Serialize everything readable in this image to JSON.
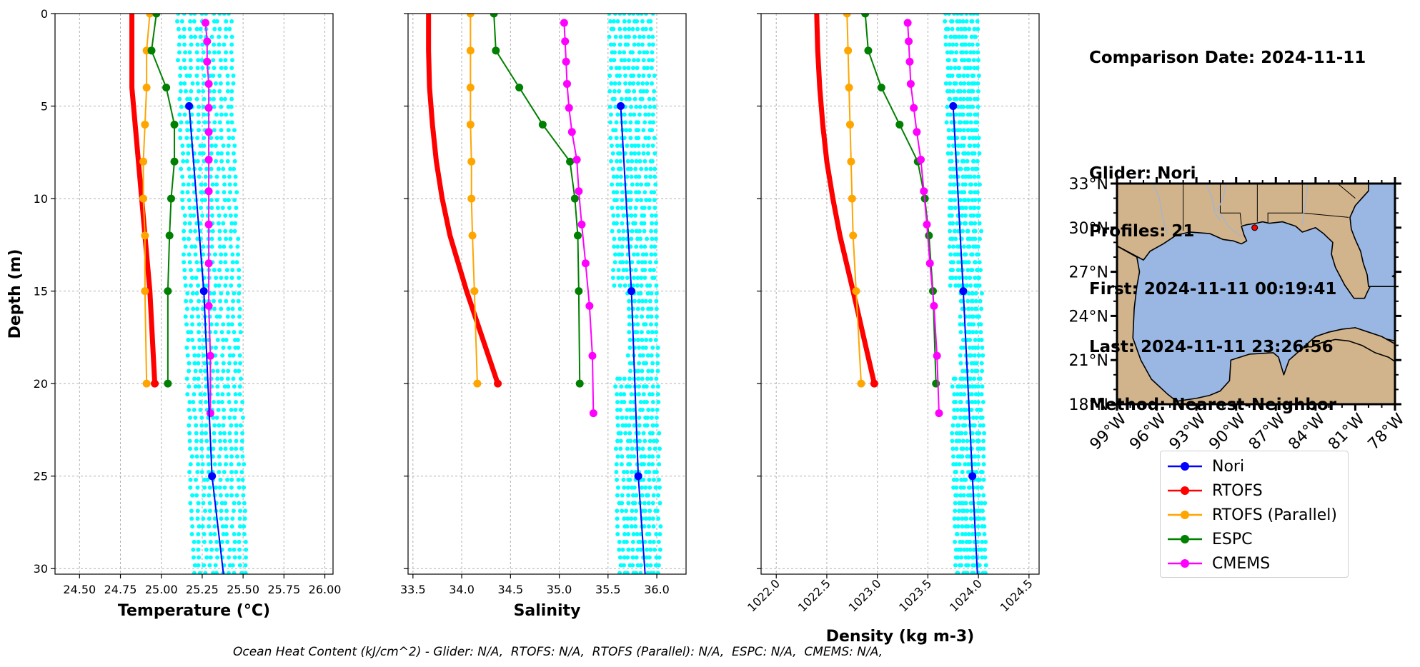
{
  "info": {
    "comparison_date": "Comparison Date: 2024-11-11",
    "glider": "Glider: Nori",
    "profiles": "Profiles: 21",
    "first": "First: 2024-11-11 00:19:41",
    "last": "Last: 2024-11-11 23:26:56",
    "method": "Method: Nearest-Neighbor"
  },
  "footer": "Ocean Heat Content (kJ/cm^2) - Glider: N/A,  RTOFS: N/A,  RTOFS (Parallel): N/A,  ESPC: N/A,  CMEMS: N/A,",
  "colors": {
    "Nori": "#0000ff",
    "RTOFS": "#ff0000",
    "RTOFS (Parallel)": "#ffa500",
    "ESPC": "#008000",
    "CMEMS": "#ff00ff",
    "glider_profiles": "#00ffff",
    "land": "#d2b48c",
    "water": "#99b7e2"
  },
  "legend": [
    "Nori",
    "RTOFS",
    "RTOFS (Parallel)",
    "ESPC",
    "CMEMS"
  ],
  "chart_data": [
    {
      "type": "line",
      "xlabel": "Temperature (°C)",
      "ylabel": "Depth (m)",
      "xlim": [
        24.35,
        26.05
      ],
      "ylim": [
        30.3,
        0
      ],
      "xticks": [
        "24.50",
        "24.75",
        "25.00",
        "25.25",
        "25.50",
        "25.75",
        "26.00"
      ],
      "xtick_values": [
        24.5,
        24.75,
        25.0,
        25.25,
        25.5,
        25.75,
        26.0
      ],
      "yticks": [
        0,
        5,
        10,
        15,
        20,
        25,
        30
      ],
      "grid": true,
      "glider_cloud": {
        "x_min_top": 25.1,
        "x_max_top": 25.42,
        "x_min_bottom": 25.2,
        "x_max_bottom": 25.52
      },
      "series": [
        {
          "name": "Nori",
          "depth": [
            5,
            15,
            25,
            30.3
          ],
          "values": [
            25.17,
            25.26,
            25.31,
            25.38
          ],
          "markers": [
            true,
            true,
            true,
            false
          ],
          "width": 2
        },
        {
          "name": "RTOFS",
          "depth": [
            0,
            2,
            4,
            6,
            8,
            10,
            12,
            15,
            20
          ],
          "values": [
            24.82,
            24.82,
            24.82,
            24.84,
            24.86,
            24.88,
            24.9,
            24.93,
            24.96
          ],
          "markers": [
            false,
            false,
            false,
            false,
            false,
            false,
            false,
            false,
            true
          ],
          "width": 7
        },
        {
          "name": "RTOFS (Parallel)",
          "depth": [
            0,
            2,
            4,
            6,
            8,
            10,
            12,
            15,
            20
          ],
          "values": [
            24.93,
            24.91,
            24.91,
            24.9,
            24.89,
            24.89,
            24.9,
            24.9,
            24.91
          ],
          "markers": [
            true,
            true,
            true,
            true,
            true,
            true,
            true,
            true,
            true
          ],
          "width": 2
        },
        {
          "name": "ESPC",
          "depth": [
            0,
            2,
            4,
            6,
            8,
            10,
            12,
            15,
            20
          ],
          "values": [
            24.97,
            24.94,
            25.03,
            25.08,
            25.08,
            25.06,
            25.05,
            25.04,
            25.04
          ],
          "markers": [
            true,
            true,
            true,
            true,
            true,
            true,
            true,
            true,
            true
          ],
          "width": 2
        },
        {
          "name": "CMEMS",
          "depth": [
            0.5,
            1.5,
            2.6,
            3.8,
            5.1,
            6.4,
            7.9,
            9.6,
            11.4,
            13.5,
            15.8,
            18.5,
            21.6
          ],
          "values": [
            25.27,
            25.28,
            25.28,
            25.29,
            25.29,
            25.29,
            25.29,
            25.29,
            25.29,
            25.29,
            25.29,
            25.3,
            25.3
          ],
          "markers": [
            true,
            true,
            true,
            true,
            true,
            true,
            true,
            true,
            true,
            true,
            true,
            true,
            true
          ],
          "width": 2
        }
      ]
    },
    {
      "type": "line",
      "xlabel": "Salinity",
      "xlim": [
        33.45,
        36.3
      ],
      "ylim": [
        30.3,
        0
      ],
      "xticks": [
        "33.5",
        "34.0",
        "34.5",
        "35.0",
        "35.5",
        "36.0"
      ],
      "xtick_values": [
        33.5,
        34.0,
        34.5,
        35.0,
        35.5,
        36.0
      ],
      "yticks": [
        0,
        5,
        10,
        15,
        20,
        25,
        30
      ],
      "grid": true,
      "glider_cloud": {
        "x_min_top": 35.52,
        "x_max_top": 35.95,
        "x_min_bottom": 35.62,
        "x_max_bottom": 36.03
      },
      "series": [
        {
          "name": "Nori",
          "depth": [
            5,
            15,
            25,
            30.3
          ],
          "values": [
            35.63,
            35.74,
            35.81,
            35.88
          ],
          "markers": [
            true,
            true,
            true,
            false
          ],
          "width": 2
        },
        {
          "name": "RTOFS",
          "depth": [
            0,
            2,
            4,
            6,
            8,
            10,
            12,
            15,
            20
          ],
          "values": [
            33.66,
            33.66,
            33.67,
            33.7,
            33.74,
            33.8,
            33.88,
            34.05,
            34.37
          ],
          "markers": [
            false,
            false,
            false,
            false,
            false,
            false,
            false,
            false,
            true
          ],
          "width": 7
        },
        {
          "name": "RTOFS (Parallel)",
          "depth": [
            0,
            2,
            4,
            6,
            8,
            10,
            12,
            15,
            20
          ],
          "values": [
            34.09,
            34.09,
            34.09,
            34.09,
            34.1,
            34.1,
            34.11,
            34.13,
            34.16
          ],
          "markers": [
            true,
            true,
            true,
            true,
            true,
            true,
            true,
            true,
            true
          ],
          "width": 2
        },
        {
          "name": "ESPC",
          "depth": [
            0,
            2,
            4,
            6,
            8,
            10,
            12,
            15,
            20
          ],
          "values": [
            34.33,
            34.35,
            34.59,
            34.83,
            35.11,
            35.16,
            35.19,
            35.2,
            35.21
          ],
          "markers": [
            true,
            true,
            true,
            true,
            true,
            true,
            true,
            true,
            true
          ],
          "width": 2
        },
        {
          "name": "CMEMS",
          "depth": [
            0.5,
            1.5,
            2.6,
            3.8,
            5.1,
            6.4,
            7.9,
            9.6,
            11.4,
            13.5,
            15.8,
            18.5,
            21.6
          ],
          "values": [
            35.05,
            35.06,
            35.07,
            35.08,
            35.1,
            35.13,
            35.18,
            35.2,
            35.23,
            35.27,
            35.31,
            35.34,
            35.35
          ],
          "markers": [
            true,
            true,
            true,
            true,
            true,
            true,
            true,
            true,
            true,
            true,
            true,
            true,
            true
          ],
          "width": 2
        }
      ]
    },
    {
      "type": "line",
      "xlabel": "Density (kg m-3)",
      "xlim": [
        1021.85,
        1024.6
      ],
      "ylim": [
        30.3,
        0
      ],
      "xticks": [
        "1022.0",
        "1022.5",
        "1023.0",
        "1023.5",
        "1024.0",
        "1024.5"
      ],
      "xtick_values": [
        1022.0,
        1022.5,
        1023.0,
        1023.5,
        1024.0,
        1024.5
      ],
      "yticks": [
        0,
        5,
        10,
        15,
        20,
        25,
        30
      ],
      "grid": true,
      "glider_cloud": {
        "x_min_top": 1023.68,
        "x_max_top": 1023.98,
        "x_min_bottom": 1023.78,
        "x_max_bottom": 1024.06
      },
      "series": [
        {
          "name": "Nori",
          "depth": [
            5,
            15,
            25,
            30.3
          ],
          "values": [
            1023.75,
            1023.85,
            1023.94,
            1023.99
          ],
          "markers": [
            true,
            true,
            true,
            false
          ],
          "width": 2
        },
        {
          "name": "RTOFS",
          "depth": [
            0,
            2,
            4,
            6,
            8,
            10,
            12,
            15,
            20
          ],
          "values": [
            1022.4,
            1022.41,
            1022.43,
            1022.46,
            1022.5,
            1022.56,
            1022.63,
            1022.76,
            1022.97
          ],
          "markers": [
            false,
            false,
            false,
            false,
            false,
            false,
            false,
            false,
            true
          ],
          "width": 7
        },
        {
          "name": "RTOFS (Parallel)",
          "depth": [
            0,
            2,
            4,
            6,
            8,
            10,
            12,
            15,
            20
          ],
          "values": [
            1022.7,
            1022.71,
            1022.72,
            1022.73,
            1022.74,
            1022.75,
            1022.76,
            1022.79,
            1022.84
          ],
          "markers": [
            true,
            true,
            true,
            true,
            true,
            true,
            true,
            true,
            true
          ],
          "width": 2
        },
        {
          "name": "ESPC",
          "depth": [
            0,
            2,
            4,
            6,
            8,
            10,
            12,
            15,
            20
          ],
          "values": [
            1022.88,
            1022.91,
            1023.04,
            1023.22,
            1023.4,
            1023.47,
            1023.51,
            1023.55,
            1023.58
          ],
          "markers": [
            true,
            true,
            true,
            true,
            true,
            true,
            true,
            true,
            true
          ],
          "width": 2
        },
        {
          "name": "CMEMS",
          "depth": [
            0.5,
            1.5,
            2.6,
            3.8,
            5.1,
            6.4,
            7.9,
            9.6,
            11.4,
            13.5,
            15.8,
            18.5,
            21.6
          ],
          "values": [
            1023.3,
            1023.31,
            1023.32,
            1023.33,
            1023.36,
            1023.39,
            1023.43,
            1023.46,
            1023.49,
            1023.52,
            1023.56,
            1023.59,
            1023.61
          ],
          "markers": [
            true,
            true,
            true,
            true,
            true,
            true,
            true,
            true,
            true,
            true,
            true,
            true,
            true
          ],
          "width": 2
        }
      ]
    }
  ],
  "map": {
    "lon_ticks": [
      "99°W",
      "96°W",
      "93°W",
      "90°W",
      "87°W",
      "84°W",
      "81°W",
      "78°W"
    ],
    "lon_values": [
      -99,
      -96,
      -93,
      -90,
      -87,
      -84,
      -81,
      -78
    ],
    "lat_ticks": [
      "18°N",
      "21°N",
      "24°N",
      "27°N",
      "30°N",
      "33°N"
    ],
    "lat_values": [
      18,
      21,
      24,
      27,
      30,
      33
    ],
    "lon_range": [
      -99,
      -78
    ],
    "lat_range": [
      18,
      33
    ],
    "glider_position": {
      "lon": -88.6,
      "lat": 30.0
    }
  }
}
